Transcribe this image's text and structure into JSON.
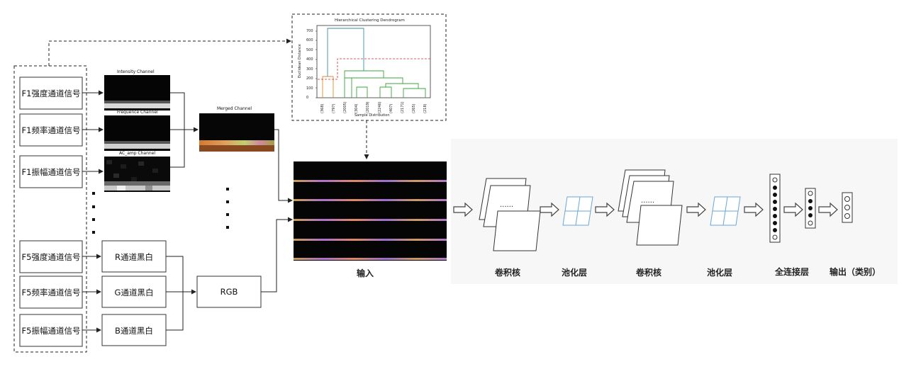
{
  "left_inputs": {
    "f1_intensity": "F1强度通道信号",
    "f1_frequency": "F1频率通道信号",
    "f1_amplitude": "F1振幅通道信号",
    "f5_intensity": "F5强度通道信号",
    "f5_frequency": "F5频率通道信号",
    "f5_amplitude": "F5振幅通道信号"
  },
  "channel_images": {
    "intensity": "Intensity Channel",
    "frequence": "Frequence Channel",
    "ac_amp": "AC_amp Channel",
    "merged": "Merged Channel"
  },
  "bw_channels": {
    "r": "R通道黑白",
    "g": "G通道黑白",
    "b": "B通道黑白",
    "rgb": "RGB"
  },
  "dendrogram": {
    "title": "Hierarchical Clustering Dendrogram",
    "xlabel": "Sample Distribution",
    "ylabel": "Euclidean Distance",
    "yticks": [
      "700",
      "600",
      "500",
      "400",
      "300",
      "200",
      "100",
      "0"
    ],
    "leaf_labels": [
      "(368)",
      "(797)",
      "(2005)",
      "(304)",
      "(2019)",
      "(2246)",
      "(407)",
      "(2171)",
      "(265)",
      "(218)"
    ],
    "colors": {
      "orange": "#e08a2e",
      "teal": "#3a8fa0",
      "green": "#3aa53a",
      "red": "#d62728"
    }
  },
  "network": {
    "input_label": "输入",
    "conv1_label": "卷积核",
    "pool1_label": "池化层",
    "conv2_label": "卷积核",
    "pool2_label": "池化层",
    "fc_label": "全连接层",
    "output_label": "输出（类别）"
  }
}
